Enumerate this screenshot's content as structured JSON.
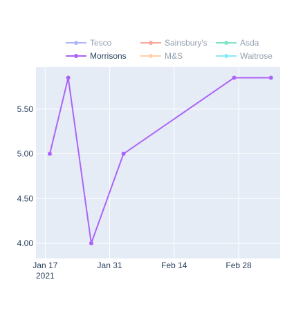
{
  "chart_data": {
    "type": "line",
    "title": "",
    "xlabel": "",
    "ylabel": "",
    "x_ticks": [
      "Jan 17\n2021",
      "Jan 31",
      "Feb 14",
      "Feb 28"
    ],
    "y_ticks": [
      "4.00",
      "4.50",
      "5.00",
      "5.50"
    ],
    "ylim": [
      3.83,
      5.97
    ],
    "xlim": [
      "2021-01-15",
      "2021-03-09"
    ],
    "grid": true,
    "legend_position": "top",
    "plot_background": "#e5ecf6",
    "series": [
      {
        "name": "Tesco",
        "color": "#636efa",
        "faded": true,
        "points": []
      },
      {
        "name": "Sainsbury's",
        "color": "#ef553b",
        "faded": true,
        "points": []
      },
      {
        "name": "Asda",
        "color": "#00cc96",
        "faded": true,
        "points": []
      },
      {
        "name": "Morrisons",
        "color": "#ab63fa",
        "faded": false,
        "points": [
          {
            "x": "2021-01-18",
            "y": 5.0
          },
          {
            "x": "2021-01-22",
            "y": 5.85
          },
          {
            "x": "2021-01-27",
            "y": 4.0
          },
          {
            "x": "2021-02-03",
            "y": 5.0
          },
          {
            "x": "2021-02-27",
            "y": 5.85
          },
          {
            "x": "2021-03-07",
            "y": 5.85
          }
        ]
      },
      {
        "name": "M&S",
        "color": "#ffa15a",
        "faded": true,
        "points": []
      },
      {
        "name": "Waitrose",
        "color": "#19d3f3",
        "faded": true,
        "points": []
      }
    ]
  }
}
